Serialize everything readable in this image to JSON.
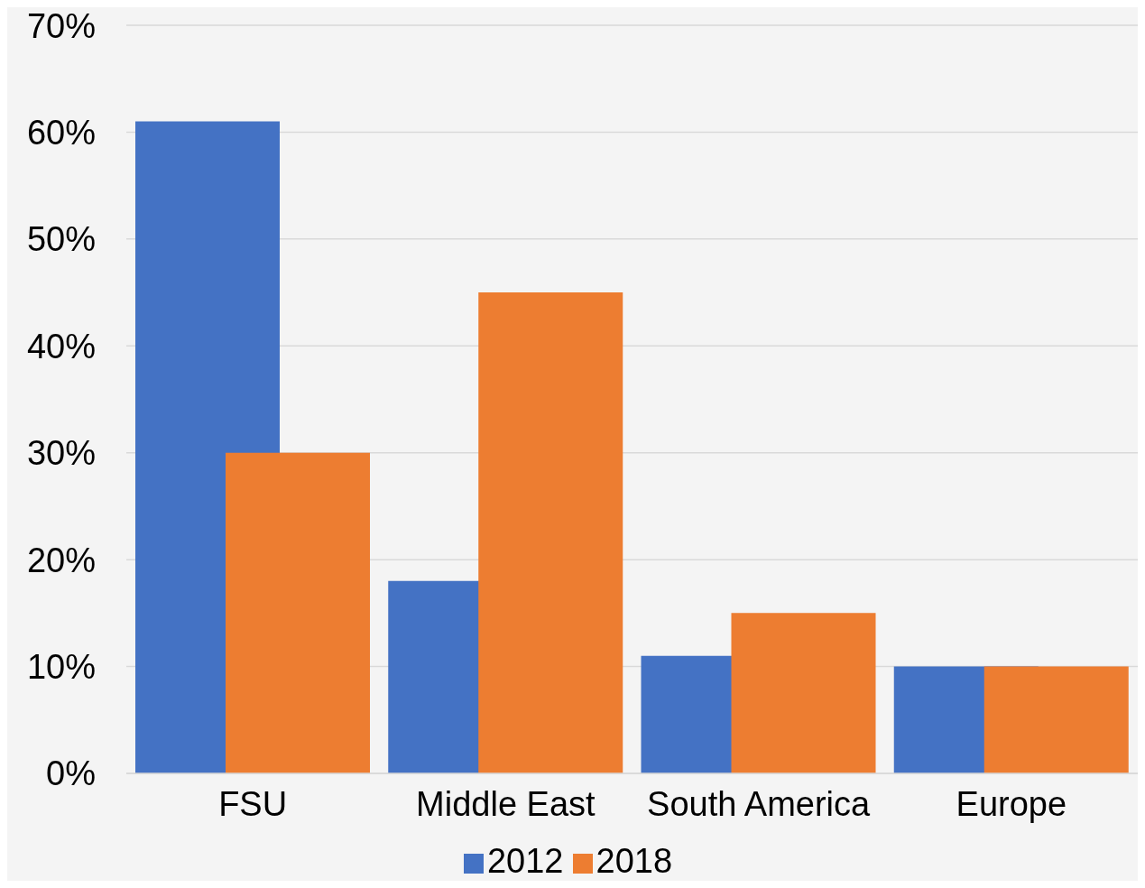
{
  "chart_data": {
    "type": "bar",
    "categories": [
      "FSU",
      "Middle East",
      "South America",
      "Europe"
    ],
    "series": [
      {
        "name": "2012",
        "color": "#4472c4",
        "values": [
          61,
          18,
          11,
          10
        ]
      },
      {
        "name": "2018",
        "color": "#ed7d31",
        "values": [
          30,
          45,
          15,
          10
        ]
      }
    ],
    "ylim": [
      0,
      70
    ],
    "yticks": [
      {
        "value": 0,
        "label": "0%"
      },
      {
        "value": 10,
        "label": "10%"
      },
      {
        "value": 20,
        "label": "20%"
      },
      {
        "value": 30,
        "label": "30%"
      },
      {
        "value": 40,
        "label": "40%"
      },
      {
        "value": 50,
        "label": "50%"
      },
      {
        "value": 60,
        "label": "60%"
      },
      {
        "value": 70,
        "label": "70%"
      }
    ],
    "grid": "y",
    "legend": "bottom"
  }
}
